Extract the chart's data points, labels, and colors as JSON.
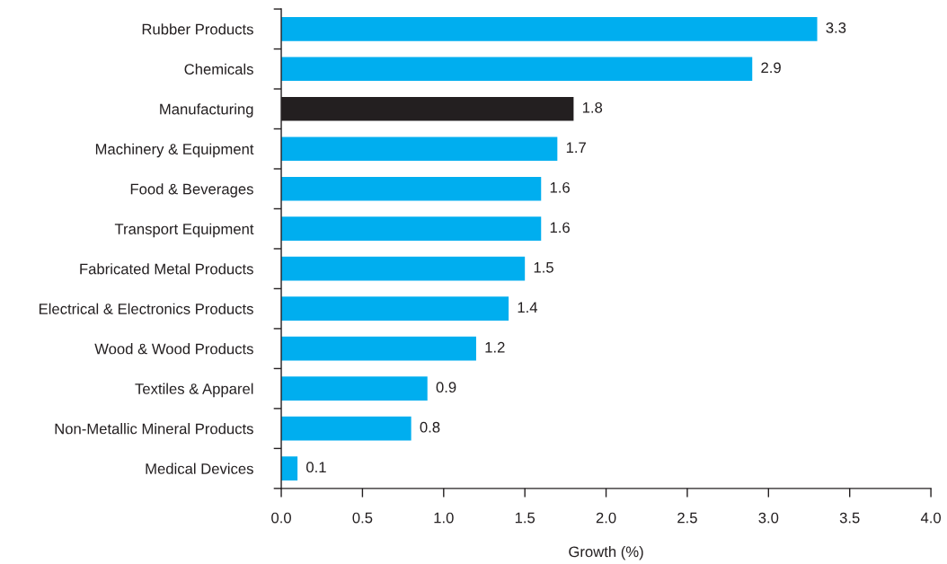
{
  "chart_data": {
    "type": "bar",
    "orientation": "horizontal",
    "categories": [
      "Rubber Products",
      "Chemicals",
      "Manufacturing",
      "Machinery & Equipment",
      "Food & Beverages",
      "Transport Equipment",
      "Fabricated Metal Products",
      "Electrical & Electronics Products",
      "Wood & Wood Products",
      "Textiles & Apparel",
      "Non-Metallic Mineral Products",
      "Medical Devices"
    ],
    "values": [
      3.3,
      2.9,
      1.8,
      1.7,
      1.6,
      1.6,
      1.5,
      1.4,
      1.2,
      0.9,
      0.8,
      0.1
    ],
    "colors": [
      "#00aeef",
      "#00aeef",
      "#231f20",
      "#00aeef",
      "#00aeef",
      "#00aeef",
      "#00aeef",
      "#00aeef",
      "#00aeef",
      "#00aeef",
      "#00aeef",
      "#00aeef"
    ],
    "xlabel": "Growth (%)",
    "xlim": [
      0,
      4
    ],
    "xticks": [
      {
        "value": 0,
        "label": "0.0"
      },
      0.5,
      {
        "value": 1,
        "label": "1.0"
      },
      1.5,
      {
        "value": 2,
        "label": "2.0"
      },
      2.5,
      {
        "value": 3,
        "label": "3.0"
      },
      3.5,
      {
        "value": 4,
        "label": "4.0"
      }
    ],
    "data_labels": true,
    "grid": false
  }
}
